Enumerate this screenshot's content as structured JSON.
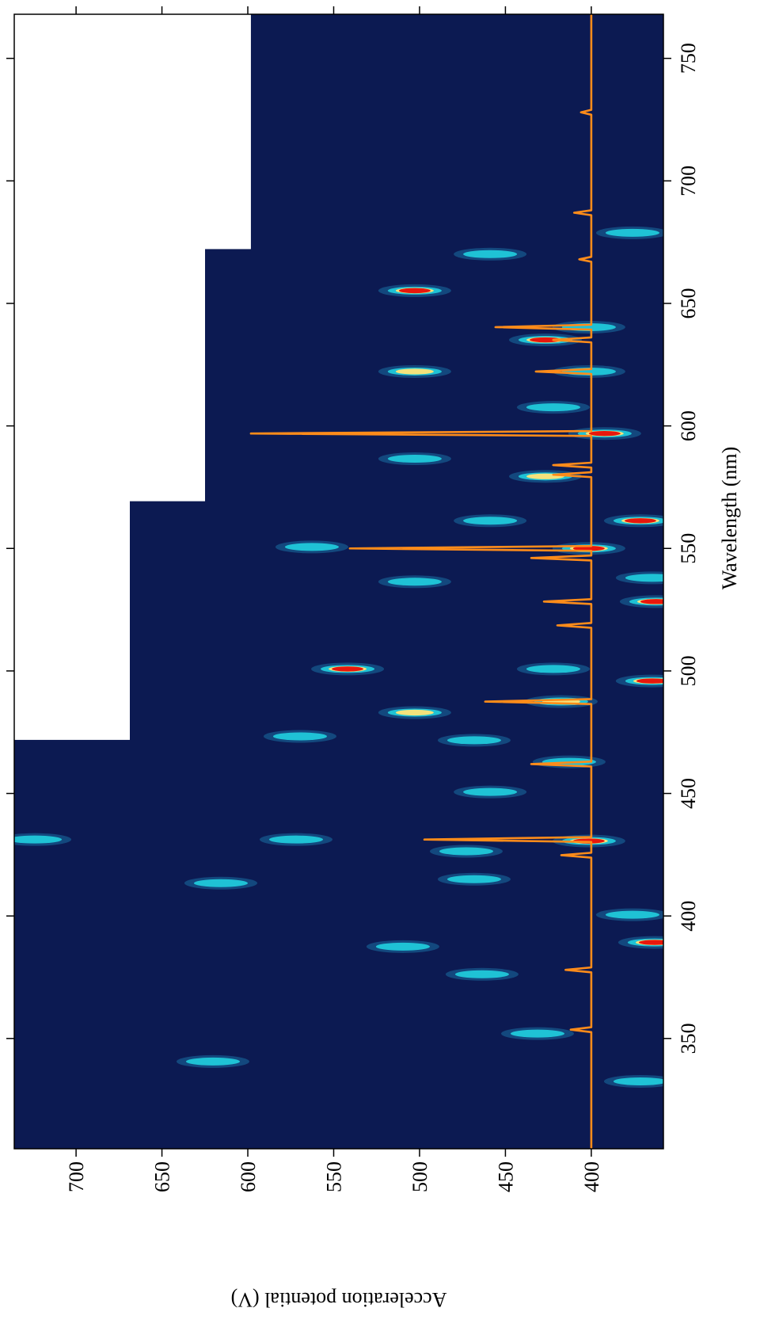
{
  "chart_data": {
    "type": "heatmap",
    "xlabel": "Wavelength (nm)",
    "ylabel": "Acceleration potential (V)",
    "xlim": [
      305,
      768
    ],
    "ylim": [
      358,
      736
    ],
    "xticks": [
      350,
      400,
      450,
      500,
      550,
      600,
      650,
      700,
      750
    ],
    "yticks": [
      400,
      450,
      500,
      550,
      600,
      650,
      700
    ],
    "background_color": "#0c1a52",
    "level_colors": [
      "#22d8e4",
      "#f3e27c",
      "#e8170c"
    ],
    "coverage": [
      {
        "x": [
          305,
          471.7
        ],
        "ymax": 736
      },
      {
        "x": [
          471.7,
          569.1
        ],
        "ymax": 668.7
      },
      {
        "x": [
          569.1,
          672
        ],
        "ymax": 624.9
      },
      {
        "x": [
          672,
          768
        ],
        "ymax": 598.2
      }
    ],
    "spots": [
      {
        "x": 655.2,
        "y": 502.8,
        "level": 3
      },
      {
        "x": 635.1,
        "y": 426.7,
        "level": 3
      },
      {
        "x": 640.3,
        "y": 401.4,
        "level": 1
      },
      {
        "x": 622.2,
        "y": 502.8,
        "level": 2
      },
      {
        "x": 622.2,
        "y": 401.4,
        "level": 1
      },
      {
        "x": 596.9,
        "y": 392.2,
        "level": 3
      },
      {
        "x": 586.6,
        "y": 502.8,
        "level": 1
      },
      {
        "x": 579.4,
        "y": 426.7,
        "level": 2
      },
      {
        "x": 561.3,
        "y": 371.4,
        "level": 3
      },
      {
        "x": 550.0,
        "y": 401.4,
        "level": 3
      },
      {
        "x": 561.3,
        "y": 458.9,
        "level": 1
      },
      {
        "x": 538.0,
        "y": 364.5,
        "level": 1
      },
      {
        "x": 536.4,
        "y": 502.8,
        "level": 1
      },
      {
        "x": 550.6,
        "y": 562.7,
        "level": 1
      },
      {
        "x": 528.3,
        "y": 362.2,
        "level": 3
      },
      {
        "x": 500.8,
        "y": 541.9,
        "level": 3
      },
      {
        "x": 500.8,
        "y": 422.1,
        "level": 1
      },
      {
        "x": 495.9,
        "y": 364.5,
        "level": 3
      },
      {
        "x": 487.5,
        "y": 417.5,
        "level": 2
      },
      {
        "x": 483.0,
        "y": 502.8,
        "level": 2
      },
      {
        "x": 473.3,
        "y": 569.6,
        "level": 1
      },
      {
        "x": 471.7,
        "y": 468.2,
        "level": 1
      },
      {
        "x": 462.9,
        "y": 412.9,
        "level": 1
      },
      {
        "x": 450.6,
        "y": 458.9,
        "level": 1
      },
      {
        "x": 431.2,
        "y": 571.9,
        "level": 1
      },
      {
        "x": 430.6,
        "y": 401.4,
        "level": 3
      },
      {
        "x": 426.4,
        "y": 472.8,
        "level": 1
      },
      {
        "x": 431.2,
        "y": 724.0,
        "level": 1
      },
      {
        "x": 413.4,
        "y": 615.7,
        "level": 1
      },
      {
        "x": 415.0,
        "y": 468.2,
        "level": 1
      },
      {
        "x": 400.5,
        "y": 376.0,
        "level": 1
      },
      {
        "x": 389.2,
        "y": 363.1,
        "level": 3
      },
      {
        "x": 387.5,
        "y": 509.7,
        "level": 1
      },
      {
        "x": 376.2,
        "y": 463.6,
        "level": 1
      },
      {
        "x": 352.0,
        "y": 431.3,
        "level": 1
      },
      {
        "x": 340.6,
        "y": 620.3,
        "level": 1
      },
      {
        "x": 332.5,
        "y": 371.4,
        "level": 1
      },
      {
        "x": 678.8,
        "y": 376.0,
        "level": 1
      },
      {
        "x": 670.1,
        "y": 458.9,
        "level": 1
      },
      {
        "x": 607.6,
        "y": 422.1,
        "level": 1
      }
    ],
    "line": {
      "color": "#ff8c1a",
      "x": [
        305,
        352.6,
        353.6,
        354.6,
        377,
        378,
        379,
        423.8,
        424.8,
        425.8,
        430.2,
        431.2,
        432.2,
        461,
        462,
        463,
        486.5,
        487.5,
        488.5,
        517.6,
        518.6,
        519.6,
        527.3,
        528.3,
        529.3,
        545.1,
        546.1,
        547.1,
        549,
        550,
        551,
        579.1,
        580.1,
        581.1,
        583,
        584,
        585,
        595.9,
        596.9,
        597.9,
        621.2,
        622.2,
        623.2,
        634.1,
        635.1,
        636.1,
        639.3,
        640.3,
        641.3,
        667,
        668,
        669,
        686,
        687,
        688,
        727,
        728,
        729,
        768
      ],
      "values": [
        400,
        400,
        412,
        400,
        400,
        415,
        400,
        400,
        417.5,
        400,
        400,
        497.2,
        400,
        400,
        435,
        400,
        400,
        461.8,
        400,
        400,
        419.8,
        400,
        400,
        427.6,
        400,
        400,
        435,
        400,
        400,
        540.6,
        400,
        400,
        422.2,
        400,
        400,
        422.2,
        400,
        400,
        598.2,
        400,
        400,
        432.3,
        400,
        400,
        422.2,
        400,
        400,
        455.8,
        400,
        400,
        407,
        400,
        400,
        410,
        400,
        400,
        406,
        400,
        400
      ]
    }
  }
}
